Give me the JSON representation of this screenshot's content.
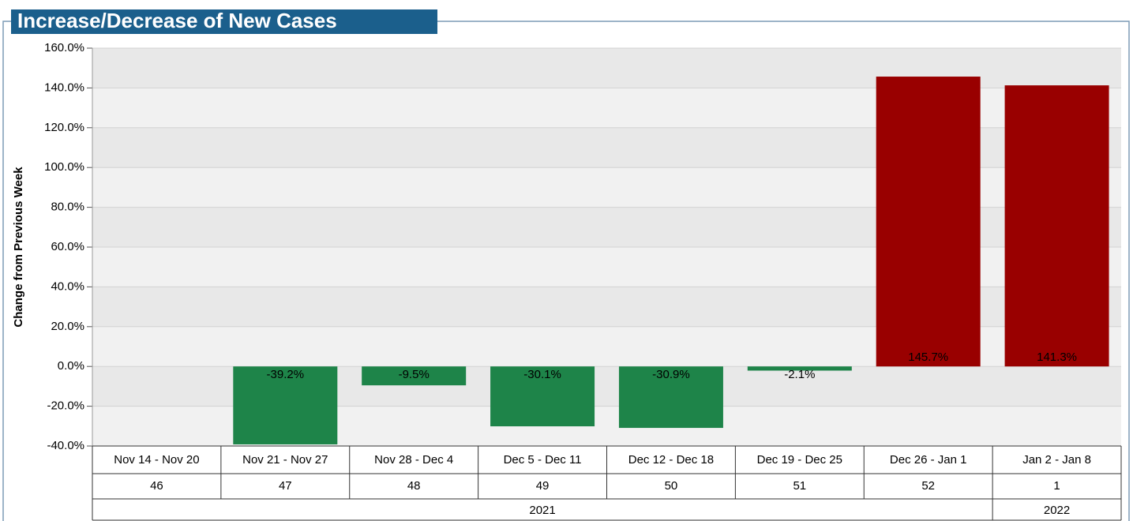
{
  "chart_data": {
    "type": "bar",
    "title": "Increase/Decrease of New Cases",
    "y_label": "Change from Previous Week",
    "categories": [
      "Nov 14 - Nov 20",
      "Nov 21 - Nov 27",
      "Nov 28 - Dec 4",
      "Dec 5 - Dec 11",
      "Dec 12 - Dec 18",
      "Dec 19 - Dec 25",
      "Dec 26 - Jan 1",
      "Jan 2 - Jan 8"
    ],
    "week_numbers": [
      46,
      47,
      48,
      49,
      50,
      51,
      52,
      1
    ],
    "year_groups": [
      {
        "name": "2021",
        "count": 7
      },
      {
        "name": "2022",
        "count": 1
      }
    ],
    "values": [
      null,
      -39.2,
      -9.5,
      -30.1,
      -30.9,
      -2.1,
      145.7,
      141.3
    ],
    "value_labels": [
      null,
      "-39.2%",
      "-9.5%",
      "-30.1%",
      "-30.9%",
      "-2.1%",
      "145.7%",
      "141.3%"
    ],
    "positive_color": "#990000",
    "negative_color": "#1e8449",
    "ylim": [
      -40,
      160
    ],
    "yticks": [
      {
        "value": -40,
        "label": "-40.0%"
      },
      {
        "value": -20,
        "label": "-20.0%"
      },
      {
        "value": 0,
        "label": "0.0%"
      },
      {
        "value": 20,
        "label": "20.0%"
      },
      {
        "value": 40,
        "label": "40.0%"
      },
      {
        "value": 60,
        "label": "60.0%"
      },
      {
        "value": 80,
        "label": "80.0%"
      },
      {
        "value": 100,
        "label": "100.0%"
      },
      {
        "value": 120,
        "label": "120.0%"
      },
      {
        "value": 140,
        "label": "140.0%"
      },
      {
        "value": 160,
        "label": "160.0%"
      }
    ],
    "grid": true
  }
}
